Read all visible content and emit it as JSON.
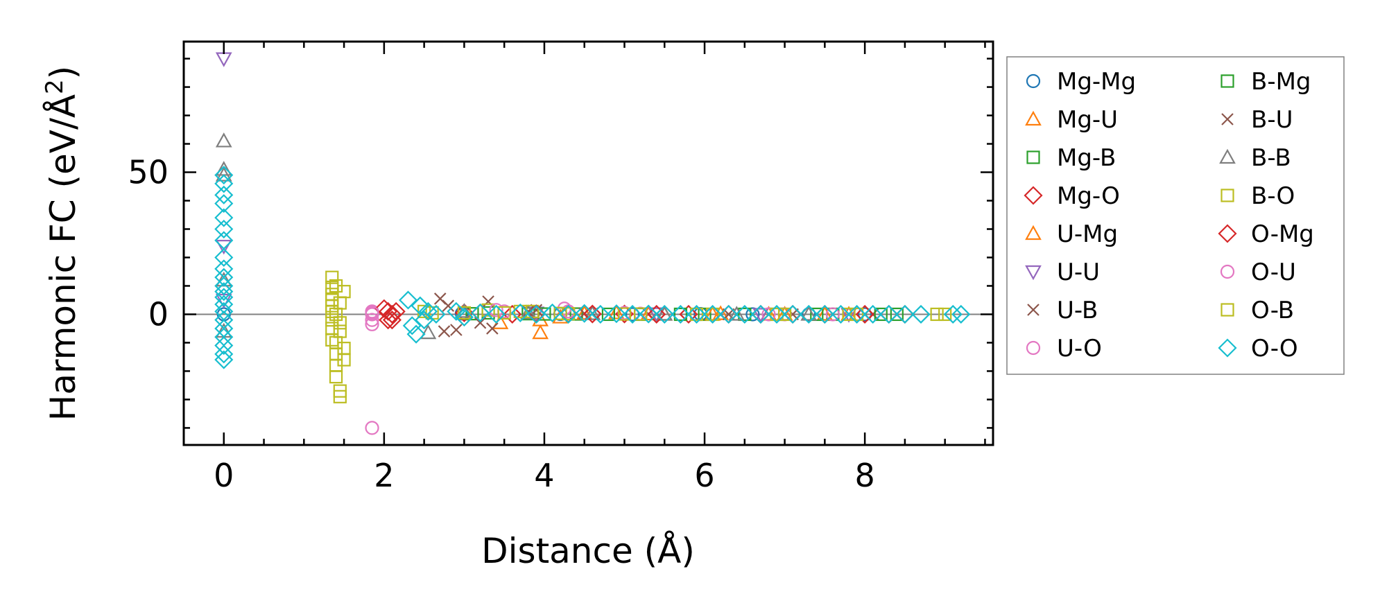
{
  "chart_data": {
    "type": "scatter",
    "title": "",
    "xlabel": "Distance (Å)",
    "ylabel_main": "Harmonic FC (eV/Å",
    "ylabel_sup": "2",
    "ylabel_close": ")",
    "xlim": [
      -0.5,
      9.6
    ],
    "ylim": [
      -46,
      96
    ],
    "xticks": [
      0,
      2,
      4,
      6,
      8
    ],
    "yticks": [
      0,
      50
    ],
    "xtick_labels": [
      "0",
      "2",
      "4",
      "6",
      "8"
    ],
    "ytick_labels": [
      "0",
      "50"
    ],
    "zero_line": true,
    "grid": false,
    "legend_position": "outside-right",
    "series": [
      {
        "name": "Mg-Mg",
        "marker": "circle",
        "color": "#1f77b4",
        "x": [
          0.0,
          2.97,
          4.2,
          5.1,
          5.95,
          6.6,
          7.3,
          8.0
        ],
        "y": [
          0.0,
          0.3,
          0.1,
          0.0,
          0.1,
          0.0,
          0.0,
          0.0
        ]
      },
      {
        "name": "Mg-U",
        "marker": "triangle-up",
        "color": "#ff7f0e",
        "x": [
          3.45,
          3.95,
          4.2,
          4.9,
          5.5,
          6.2,
          7.0,
          7.8
        ],
        "y": [
          -3.0,
          -2.0,
          -1.0,
          0.5,
          0.0,
          0.2,
          0.0,
          0.0
        ]
      },
      {
        "name": "Mg-B",
        "marker": "square",
        "color": "#2ca02c",
        "x": [
          3.3,
          3.8,
          4.4,
          5.2,
          6.0,
          6.9,
          7.6,
          8.4
        ],
        "y": [
          0.5,
          0.2,
          0.1,
          0.0,
          0.0,
          0.0,
          0.0,
          0.0
        ]
      },
      {
        "name": "Mg-O",
        "marker": "diamond",
        "color": "#d62728",
        "x": [
          2.05,
          2.1,
          3.0,
          3.6,
          4.3,
          5.0,
          5.8,
          6.7,
          7.5,
          8.3
        ],
        "y": [
          1.0,
          -2.0,
          0.5,
          0.0,
          0.2,
          0.1,
          0.0,
          0.0,
          0.0,
          0.0
        ]
      },
      {
        "name": "U-Mg",
        "marker": "triangle-up",
        "color": "#ff7f0e",
        "x": [
          3.95,
          4.5,
          5.3,
          6.1,
          6.8,
          7.5
        ],
        "y": [
          -6.5,
          0.3,
          0.1,
          0.0,
          0.0,
          0.0
        ]
      },
      {
        "name": "U-U",
        "marker": "triangle-down",
        "color": "#9467bd",
        "x": [
          0.0,
          0.0,
          0.0,
          3.9,
          5.4,
          6.7,
          7.8
        ],
        "y": [
          90.0,
          24.0,
          5.0,
          0.5,
          0.2,
          0.0,
          0.0
        ]
      },
      {
        "name": "U-B",
        "marker": "x",
        "color": "#8c564b",
        "x": [
          2.7,
          2.75,
          2.9,
          3.3,
          3.35,
          3.9,
          4.6,
          5.4,
          6.3,
          7.2,
          8.1
        ],
        "y": [
          5.5,
          -6.0,
          -5.5,
          4.5,
          -5.0,
          1.5,
          0.3,
          0.1,
          0.0,
          0.0,
          0.0
        ]
      },
      {
        "name": "U-O",
        "marker": "circle",
        "color": "#e377c2",
        "x": [
          1.85,
          1.85,
          1.85,
          1.85,
          3.5,
          4.25,
          5.0,
          5.9,
          6.8,
          7.6
        ],
        "y": [
          -40.0,
          0.0,
          -2.0,
          1.0,
          1.0,
          2.0,
          0.5,
          0.1,
          0.0,
          0.0
        ]
      },
      {
        "name": "B-Mg",
        "marker": "square",
        "color": "#2ca02c",
        "x": [
          3.1,
          4.0,
          4.8,
          5.7,
          6.5,
          7.4,
          8.2
        ],
        "y": [
          0.2,
          0.1,
          0.0,
          0.0,
          0.0,
          0.0,
          0.0
        ]
      },
      {
        "name": "B-U",
        "marker": "x",
        "color": "#8c564b",
        "x": [
          2.8,
          3.2,
          3.8,
          4.5,
          5.3,
          6.2,
          7.1,
          8.0
        ],
        "y": [
          3.0,
          -3.0,
          1.0,
          0.3,
          0.1,
          0.0,
          0.0,
          0.0
        ]
      },
      {
        "name": "B-B",
        "marker": "triangle-up",
        "color": "#7f7f7f",
        "x": [
          0.0,
          0.0,
          0.0,
          0.0,
          0.0,
          2.55,
          3.0,
          3.8,
          4.6,
          5.5,
          6.4,
          7.3
        ],
        "y": [
          61.0,
          51.0,
          49.0,
          12.0,
          -6.0,
          -6.5,
          1.0,
          0.5,
          0.2,
          0.0,
          0.0,
          0.0
        ]
      },
      {
        "name": "B-O",
        "marker": "square",
        "color": "#bcbd22",
        "x": [
          1.35,
          1.35,
          1.35,
          1.35,
          1.35,
          1.35,
          1.35,
          1.35,
          1.35,
          1.4,
          1.4,
          1.4,
          1.45,
          1.45,
          1.45,
          1.5,
          1.5,
          1.5,
          2.5,
          3.0,
          3.3,
          3.7,
          3.85,
          4.2,
          5.0,
          5.9,
          6.9,
          7.8,
          9.0
        ],
        "y": [
          13.0,
          9.5,
          7.0,
          5.0,
          3.0,
          1.0,
          -2.0,
          -5.0,
          -9.0,
          -14.0,
          -18.0,
          -22.0,
          -27.0,
          -29.0,
          -3.0,
          -12.0,
          -16.0,
          8.0,
          1.0,
          0.5,
          1.5,
          1.0,
          1.0,
          0.3,
          0.1,
          0.0,
          0.0,
          0.0,
          0.0
        ]
      },
      {
        "name": "O-Mg",
        "marker": "diamond",
        "color": "#d62728",
        "x": [
          2.0,
          2.05,
          2.1,
          2.15,
          3.2,
          3.9,
          4.6,
          5.4,
          6.3,
          7.1,
          8.0,
          8.5
        ],
        "y": [
          2.0,
          -2.0,
          0.0,
          1.0,
          0.5,
          0.2,
          0.1,
          0.0,
          0.0,
          0.0,
          0.0,
          0.0
        ]
      },
      {
        "name": "O-U",
        "marker": "circle",
        "color": "#e377c2",
        "x": [
          1.85,
          1.85,
          3.4,
          4.3,
          5.2,
          6.1,
          7.0,
          7.9
        ],
        "y": [
          -3.5,
          0.5,
          1.5,
          1.0,
          0.2,
          0.0,
          0.0,
          0.0
        ]
      },
      {
        "name": "O-B",
        "marker": "square",
        "color": "#bcbd22",
        "x": [
          1.4,
          1.4,
          1.4,
          1.45,
          1.45,
          2.6,
          3.5,
          4.3,
          5.2,
          6.1,
          7.0,
          7.9,
          8.9
        ],
        "y": [
          10.0,
          0.0,
          -10.0,
          4.0,
          -6.0,
          0.5,
          0.5,
          0.2,
          0.1,
          0.0,
          0.0,
          0.0,
          0.0
        ]
      },
      {
        "name": "O-O",
        "marker": "diamond",
        "color": "#17becf",
        "x": [
          0.0,
          0.0,
          0.0,
          0.0,
          0.0,
          0.0,
          0.0,
          0.0,
          0.0,
          0.0,
          0.0,
          0.0,
          0.0,
          0.0,
          0.0,
          0.0,
          0.0,
          0.0,
          0.0,
          0.0,
          0.0,
          2.3,
          2.35,
          2.4,
          2.45,
          2.5,
          2.55,
          2.65,
          2.9,
          3.0,
          3.2,
          3.4,
          3.7,
          3.9,
          4.1,
          4.3,
          4.5,
          4.7,
          4.9,
          5.1,
          5.3,
          5.5,
          5.7,
          5.9,
          6.1,
          6.3,
          6.5,
          6.7,
          6.9,
          7.1,
          7.3,
          7.5,
          7.7,
          7.9,
          8.1,
          8.3,
          8.5,
          8.7,
          9.1,
          9.2
        ],
        "y": [
          49.0,
          46.0,
          42.0,
          39.0,
          34.0,
          30.0,
          26.0,
          20.0,
          16.0,
          13.0,
          10.0,
          8.0,
          6.0,
          3.5,
          1.0,
          -2.0,
          -5.0,
          -8.0,
          -11.0,
          -14.0,
          -16.0,
          5.0,
          -4.0,
          -7.0,
          3.0,
          -2.0,
          1.0,
          0.0,
          1.0,
          -1.0,
          0.5,
          0.0,
          0.5,
          0.0,
          0.5,
          0.0,
          0.3,
          0.0,
          0.2,
          0.0,
          0.1,
          0.0,
          0.0,
          0.0,
          0.0,
          0.0,
          0.0,
          0.0,
          0.0,
          0.0,
          0.0,
          0.0,
          0.0,
          0.0,
          0.0,
          0.0,
          0.0,
          0.0,
          0.0,
          0.0
        ]
      }
    ]
  }
}
